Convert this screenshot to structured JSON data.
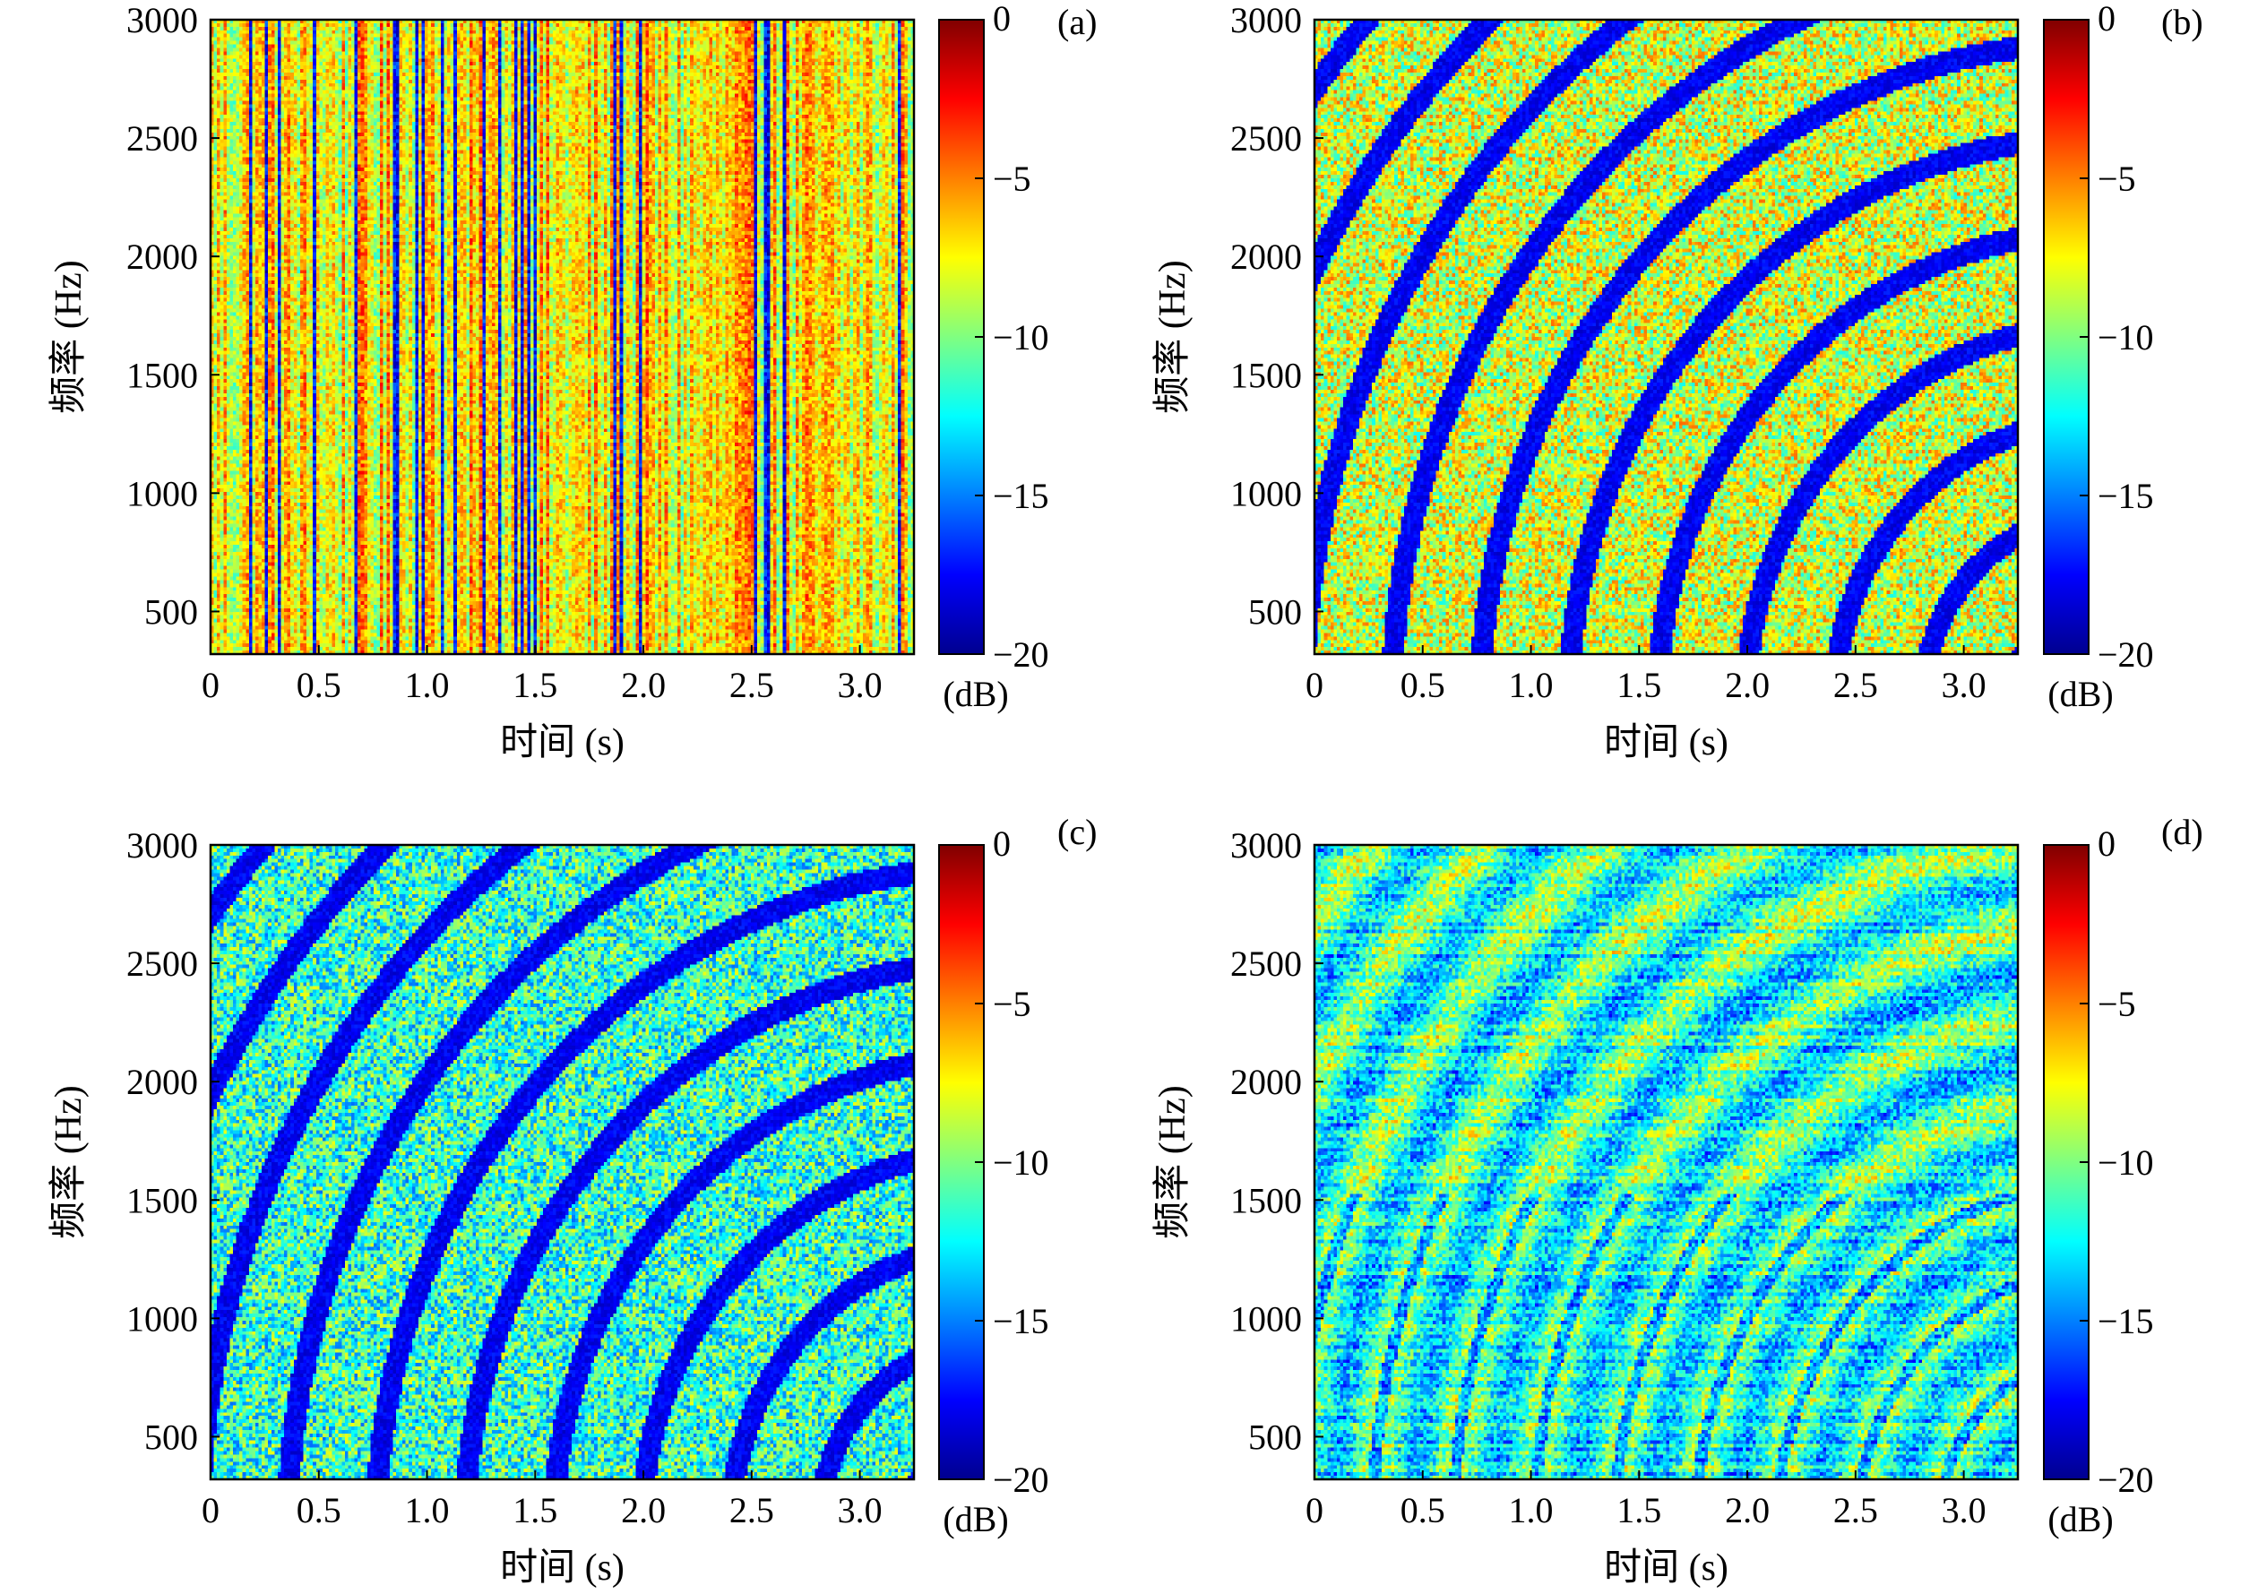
{
  "chart_data": [
    {
      "type": "heatmap",
      "panel_label": "(a)",
      "pattern": "vertical",
      "xlabel": "时间 (s)",
      "ylabel": "频率 (Hz)",
      "xlim": [
        0,
        3.25
      ],
      "ylim": [
        320,
        3000
      ],
      "xticks": [
        0,
        0.5,
        1.0,
        1.5,
        2.0,
        2.5,
        3.0
      ],
      "xtick_labels": [
        "0",
        "0.5",
        "1.0",
        "1.5",
        "2.0",
        "2.5",
        "3.0"
      ],
      "yticks": [
        500,
        1000,
        1500,
        2000,
        2500,
        3000
      ],
      "ytick_labels": [
        "500",
        "1000",
        "1500",
        "2000",
        "2500",
        "3000"
      ],
      "colorbar": {
        "range": [
          -20,
          0
        ],
        "ticks": [
          0,
          -5,
          -10,
          -15,
          -20
        ],
        "tick_labels": [
          "0",
          "−5",
          "−10",
          "−15",
          "−20"
        ],
        "unit": "(dB)"
      }
    },
    {
      "type": "heatmap",
      "panel_label": "(b)",
      "pattern": "arcs",
      "xlabel": "时间 (s)",
      "ylabel": "频率 (Hz)",
      "xlim": [
        0,
        3.25
      ],
      "ylim": [
        320,
        3000
      ],
      "xticks": [
        0,
        0.5,
        1.0,
        1.5,
        2.0,
        2.5,
        3.0
      ],
      "xtick_labels": [
        "0",
        "0.5",
        "1.0",
        "1.5",
        "2.0",
        "2.5",
        "3.0"
      ],
      "yticks": [
        500,
        1000,
        1500,
        2000,
        2500,
        3000
      ],
      "ytick_labels": [
        "500",
        "1000",
        "1500",
        "2000",
        "2500",
        "3000"
      ],
      "colorbar": {
        "range": [
          -20,
          0
        ],
        "ticks": [
          0,
          -5,
          -10,
          -15,
          -20
        ],
        "tick_labels": [
          "0",
          "−5",
          "−10",
          "−15",
          "−20"
        ],
        "unit": "(dB)"
      }
    },
    {
      "type": "heatmap",
      "panel_label": "(c)",
      "pattern": "arcs-blue",
      "xlabel": "时间 (s)",
      "ylabel": "频率 (Hz)",
      "xlim": [
        0,
        3.25
      ],
      "ylim": [
        320,
        3000
      ],
      "xticks": [
        0,
        0.5,
        1.0,
        1.5,
        2.0,
        2.5,
        3.0
      ],
      "xtick_labels": [
        "0",
        "0.5",
        "1.0",
        "1.5",
        "2.0",
        "2.5",
        "3.0"
      ],
      "yticks": [
        500,
        1000,
        1500,
        2000,
        2500,
        3000
      ],
      "ytick_labels": [
        "500",
        "1000",
        "1500",
        "2000",
        "2500",
        "3000"
      ],
      "colorbar": {
        "range": [
          -20,
          0
        ],
        "ticks": [
          0,
          -5,
          -10,
          -15,
          -20
        ],
        "tick_labels": [
          "0",
          "−5",
          "−10",
          "−15",
          "−20"
        ],
        "unit": "(dB)"
      }
    },
    {
      "type": "heatmap",
      "panel_label": "(d)",
      "pattern": "horizontal",
      "xlabel": "时间 (s)",
      "ylabel": "频率 (Hz)",
      "xlim": [
        0,
        3.25
      ],
      "ylim": [
        320,
        3000
      ],
      "xticks": [
        0,
        0.5,
        1.0,
        1.5,
        2.0,
        2.5,
        3.0
      ],
      "xtick_labels": [
        "0",
        "0.5",
        "1.0",
        "1.5",
        "2.0",
        "2.5",
        "3.0"
      ],
      "yticks": [
        500,
        1000,
        1500,
        2000,
        2500,
        3000
      ],
      "ytick_labels": [
        "500",
        "1000",
        "1500",
        "2000",
        "2500",
        "3000"
      ],
      "colorbar": {
        "range": [
          -20,
          0
        ],
        "ticks": [
          0,
          -5,
          -10,
          -15,
          -20
        ],
        "tick_labels": [
          "0",
          "−5",
          "−10",
          "−15",
          "−20"
        ],
        "unit": "(dB)"
      }
    }
  ],
  "colormap": [
    "#00008f",
    "#0000ff",
    "#0080ff",
    "#00ffff",
    "#80ff80",
    "#ffff00",
    "#ff8000",
    "#ff0000",
    "#800000"
  ]
}
